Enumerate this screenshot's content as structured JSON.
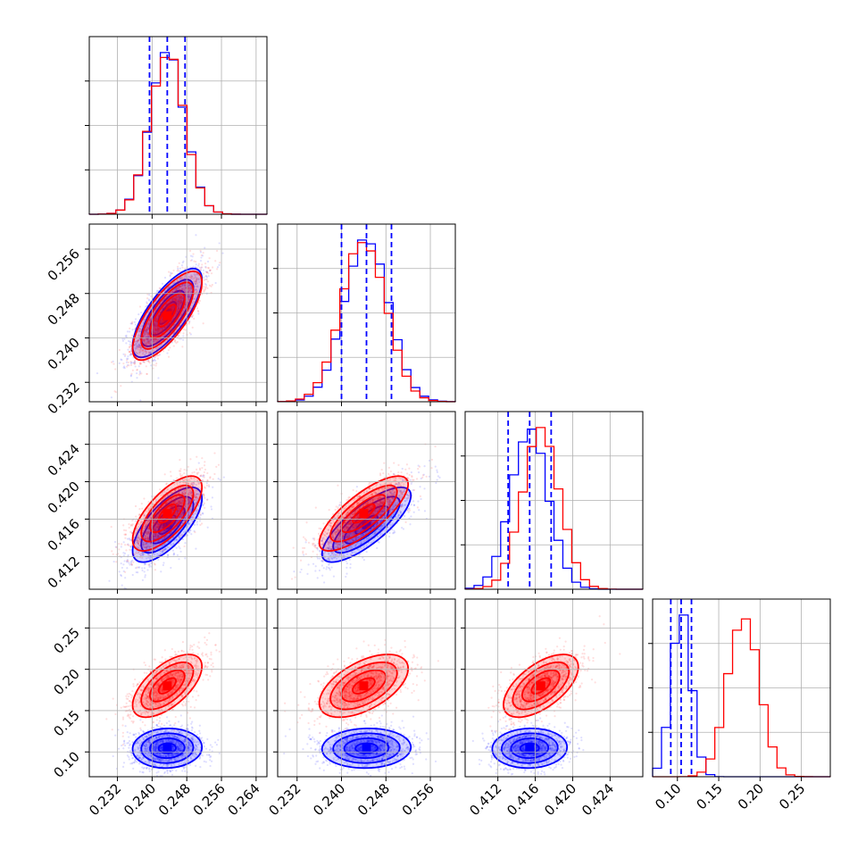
{
  "colors": {
    "blue": "#0000ff",
    "red": "#ff0000"
  },
  "chart_data": {
    "type": "corner",
    "grid": true,
    "n_params": 4,
    "param_ranges": [
      [
        0.2255,
        0.2665
      ],
      [
        0.2285,
        0.2605
      ],
      [
        0.4085,
        0.4275
      ],
      [
        0.07,
        0.285
      ]
    ],
    "ticks": [
      {
        "values": [
          0.232,
          0.24,
          0.248,
          0.256,
          0.264
        ],
        "labels": [
          "0.232",
          "0.240",
          "0.248",
          "0.256",
          "0.264"
        ]
      },
      {
        "values": [
          0.232,
          0.24,
          0.248,
          0.256
        ],
        "labels": [
          "0.232",
          "0.240",
          "0.248",
          "0.256"
        ]
      },
      {
        "values": [
          0.412,
          0.416,
          0.42,
          0.424
        ],
        "labels": [
          "0.412",
          "0.416",
          "0.420",
          "0.424"
        ]
      },
      {
        "values": [
          0.1,
          0.15,
          0.2,
          0.25
        ],
        "labels": [
          "0.10",
          "0.15",
          "0.20",
          "0.25"
        ]
      }
    ],
    "series": [
      {
        "color": "blue",
        "means": [
          0.2435,
          0.2445,
          0.4154,
          0.1045
        ],
        "stds": [
          0.004,
          0.004,
          0.002,
          0.012
        ],
        "corr": [
          [
            1,
            0.75,
            0.7,
            0.05
          ],
          [
            0.75,
            1,
            0.78,
            0.05
          ],
          [
            0.7,
            0.78,
            1,
            0.05
          ],
          [
            0.05,
            0.05,
            0.05,
            1
          ]
        ],
        "quantiles": [
          [
            0.2394,
            0.2435,
            0.2476
          ],
          [
            0.24,
            0.2445,
            0.249
          ],
          [
            0.4131,
            0.4154,
            0.4177
          ],
          [
            0.092,
            0.1045,
            0.117
          ]
        ]
      },
      {
        "color": "red",
        "means": [
          0.2435,
          0.244,
          0.4166,
          0.18
        ],
        "stds": [
          0.004,
          0.004,
          0.002,
          0.019
        ],
        "corr": [
          [
            1,
            0.75,
            0.7,
            0.62
          ],
          [
            0.75,
            1,
            0.78,
            0.55
          ],
          [
            0.7,
            0.78,
            1,
            0.6
          ],
          [
            0.62,
            0.55,
            0.6,
            1
          ]
        ]
      }
    ],
    "contour_levels_sigma": [
      0.5,
      1.0,
      1.5,
      2.0
    ]
  }
}
